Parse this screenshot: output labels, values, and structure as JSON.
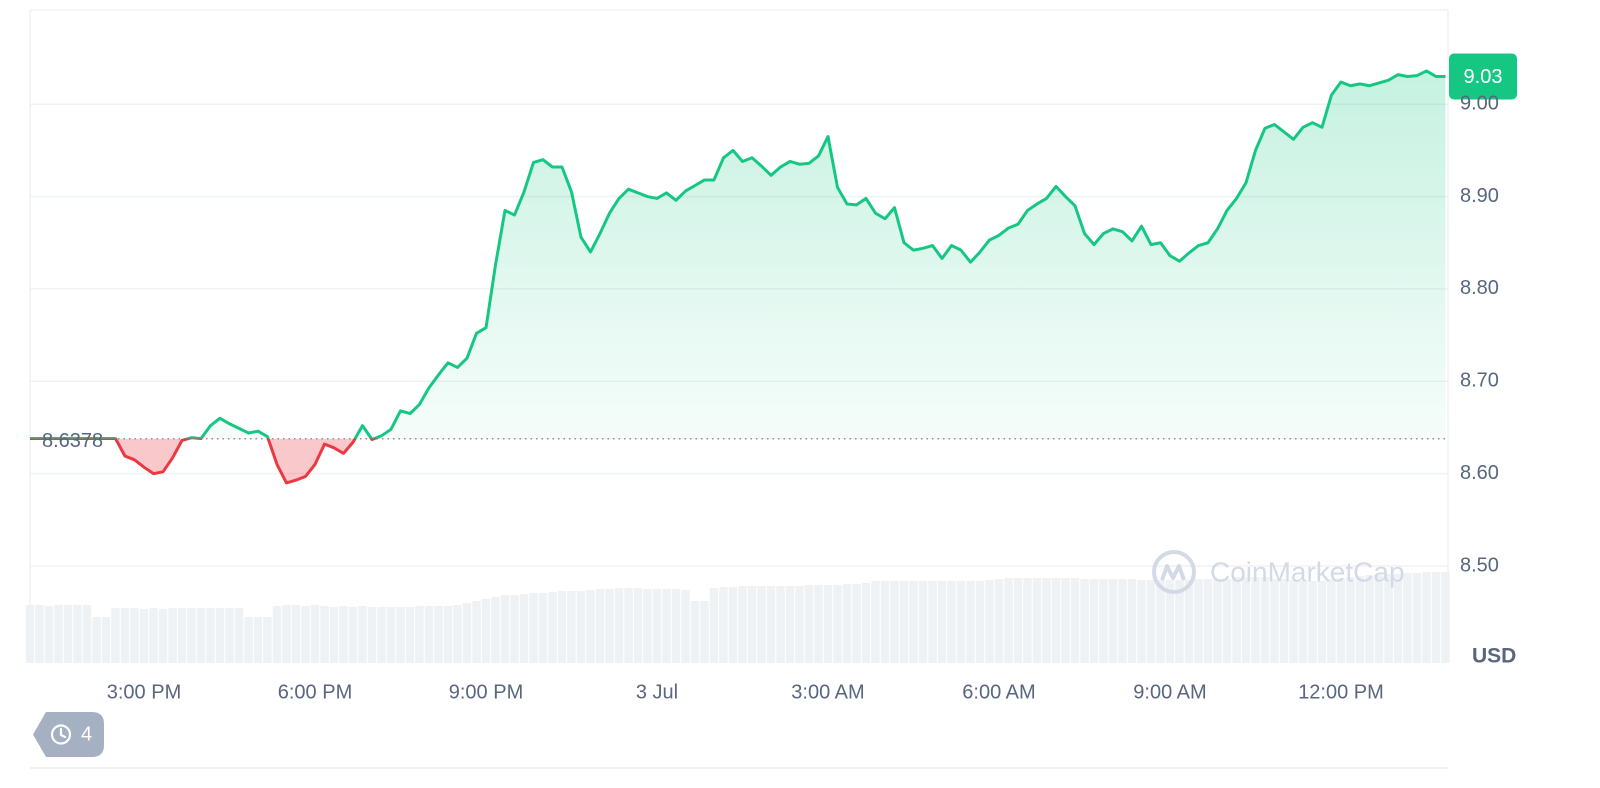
{
  "chart_data": {
    "type": "line",
    "categories": [
      null,
      null,
      null,
      null,
      null,
      null,
      null,
      null,
      null,
      null,
      null,
      null,
      "3:00 PM",
      null,
      null,
      null,
      null,
      null,
      null,
      null,
      null,
      null,
      null,
      null,
      null,
      null,
      null,
      null,
      null,
      null,
      "6:00 PM",
      null,
      null,
      null,
      null,
      null,
      null,
      null,
      null,
      null,
      null,
      null,
      null,
      null,
      null,
      null,
      null,
      null,
      "9:00 PM",
      null,
      null,
      null,
      null,
      null,
      null,
      null,
      null,
      null,
      null,
      null,
      null,
      null,
      null,
      null,
      null,
      null,
      "3 Jul",
      null,
      null,
      null,
      null,
      null,
      null,
      null,
      null,
      null,
      null,
      null,
      null,
      null,
      null,
      null,
      null,
      null,
      "3:00 AM",
      null,
      null,
      null,
      null,
      null,
      null,
      null,
      null,
      null,
      null,
      null,
      null,
      null,
      null,
      null,
      null,
      null,
      "6:00 AM",
      null,
      null,
      null,
      null,
      null,
      null,
      null,
      null,
      null,
      null,
      null,
      null,
      null,
      null,
      null,
      null,
      null,
      "9:00 AM",
      null,
      null,
      null,
      null,
      null,
      null,
      null,
      null,
      null,
      null,
      null,
      null,
      null,
      null,
      null,
      null,
      null,
      "12:00 PM",
      null,
      null,
      null,
      null,
      null,
      null,
      null,
      null,
      null,
      null,
      null
    ],
    "values": [
      8.638,
      8.638,
      8.638,
      8.638,
      8.638,
      8.638,
      8.638,
      8.638,
      8.638,
      8.638,
      8.619,
      8.615,
      8.607,
      8.6,
      8.602,
      8.617,
      8.636,
      8.639,
      8.638,
      8.652,
      8.66,
      8.654,
      8.649,
      8.644,
      8.646,
      8.64,
      8.61,
      8.59,
      8.593,
      8.597,
      8.61,
      8.632,
      8.628,
      8.622,
      8.634,
      8.652,
      8.637,
      8.641,
      8.648,
      8.668,
      8.665,
      8.675,
      8.693,
      8.707,
      8.72,
      8.715,
      8.725,
      8.752,
      8.758,
      8.826,
      8.885,
      8.88,
      8.905,
      8.937,
      8.94,
      8.932,
      8.932,
      8.905,
      8.856,
      8.84,
      8.86,
      8.882,
      8.898,
      8.908,
      8.904,
      8.9,
      8.898,
      8.904,
      8.896,
      8.906,
      8.912,
      8.918,
      8.918,
      8.942,
      8.95,
      8.938,
      8.942,
      8.933,
      8.923,
      8.932,
      8.938,
      8.935,
      8.936,
      8.944,
      8.965,
      8.91,
      8.892,
      8.891,
      8.898,
      8.882,
      8.876,
      8.888,
      8.85,
      8.842,
      8.844,
      8.847,
      8.833,
      8.847,
      8.842,
      8.829,
      8.84,
      8.853,
      8.858,
      8.866,
      8.87,
      8.885,
      8.892,
      8.898,
      8.911,
      8.9,
      8.89,
      8.86,
      8.848,
      8.86,
      8.865,
      8.862,
      8.852,
      8.868,
      8.848,
      8.85,
      8.836,
      8.83,
      8.839,
      8.847,
      8.85,
      8.865,
      8.885,
      8.898,
      8.915,
      8.95,
      8.974,
      8.978,
      8.97,
      8.962,
      8.975,
      8.98,
      8.975,
      9.01,
      9.024,
      9.02,
      9.022,
      9.02,
      9.023,
      9.026,
      9.032,
      9.03,
      9.031,
      9.036,
      9.03,
      9.03
    ],
    "volume": [
      58,
      58,
      57,
      58,
      58,
      58,
      58,
      46,
      46,
      55,
      55,
      55,
      54,
      55,
      54,
      55,
      55,
      55,
      55,
      55,
      55,
      55,
      55,
      46,
      46,
      46,
      57,
      58,
      58,
      57,
      58,
      57,
      56,
      57,
      56,
      57,
      56,
      56,
      56,
      56,
      56,
      57,
      57,
      57,
      57,
      58,
      60,
      62,
      64,
      66,
      68,
      68,
      69,
      70,
      70,
      71,
      72,
      72,
      72,
      73,
      74,
      74,
      75,
      75,
      75,
      74,
      74,
      74,
      74,
      73,
      62,
      62,
      75,
      76,
      76,
      77,
      77,
      77,
      77,
      77,
      77,
      77,
      78,
      78,
      78,
      78,
      79,
      79,
      80,
      82,
      82,
      82,
      82,
      82,
      82,
      82,
      82,
      82,
      82,
      82,
      82,
      83,
      84,
      85,
      85,
      85,
      85,
      85,
      85,
      85,
      85,
      84,
      84,
      84,
      84,
      84,
      84,
      83,
      83,
      83,
      83,
      83,
      83,
      84,
      84,
      84,
      84,
      86,
      86,
      86,
      86,
      84,
      84,
      83,
      82,
      82,
      82,
      84,
      85,
      86,
      87,
      88,
      88,
      89,
      89,
      90,
      90,
      91,
      91,
      91
    ],
    "color": "#16c784",
    "negative_color": "#ea3943",
    "volume_color": "#eff2f5",
    "reference_line": 8.6378,
    "last_price": 9.03,
    "ylim": [
      8.395,
      9.102
    ],
    "yticks": [
      {
        "value": 8.5,
        "label": "8.50"
      },
      {
        "value": 8.6,
        "label": "8.60"
      },
      {
        "value": 8.7,
        "label": "8.70"
      },
      {
        "value": 8.8,
        "label": "8.80"
      },
      {
        "value": 8.9,
        "label": "8.90"
      },
      {
        "value": 9,
        "label": "9.00"
      }
    ],
    "grid": true,
    "currency": "USD",
    "watermark": "CoinMarketCap",
    "history_count": 4
  }
}
